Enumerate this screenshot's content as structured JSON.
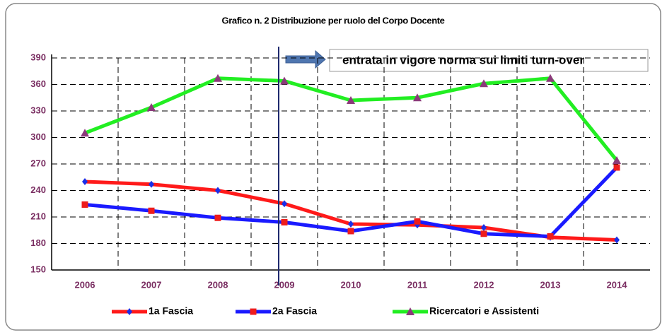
{
  "chart_data": {
    "type": "line",
    "title": "Grafico n. 2 Distribuzione per ruolo del Corpo Docente",
    "annotation": "entrata in vigore norma sui limiti turn-over",
    "categories": [
      "2006",
      "2007",
      "2008",
      "2009",
      "2010",
      "2011",
      "2012",
      "2013",
      "2014"
    ],
    "series": [
      {
        "name": "1a Fascia",
        "color": "#ff1a1a",
        "marker": "diamond",
        "marker_color": "#1a2ee8",
        "values": [
          250,
          247,
          240,
          225,
          202,
          201,
          198,
          187,
          184
        ]
      },
      {
        "name": "2a Fascia",
        "color": "#1a1aff",
        "marker": "square",
        "marker_color": "#ee1c1c",
        "values": [
          224,
          217,
          209,
          204,
          194,
          205,
          191,
          188,
          266
        ]
      },
      {
        "name": "Ricercatori e Assistenti",
        "color": "#22ee22",
        "marker": "triangle",
        "marker_color": "#8b3a7a",
        "values": [
          305,
          334,
          367,
          364,
          342,
          345,
          361,
          367,
          274
        ]
      }
    ],
    "ylim": [
      150,
      390
    ],
    "yticks": [
      150,
      180,
      210,
      240,
      270,
      300,
      330,
      360,
      390
    ],
    "grid": true
  }
}
